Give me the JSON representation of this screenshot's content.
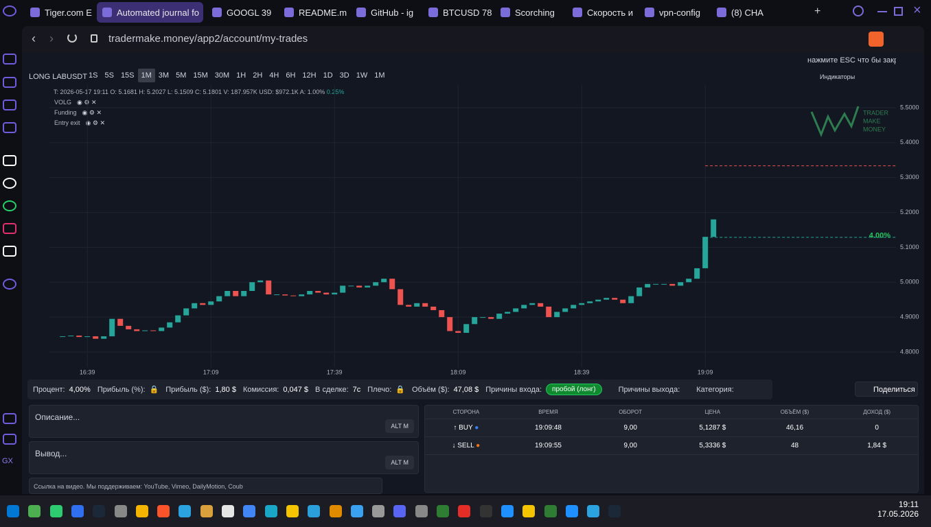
{
  "browser": {
    "tabs": [
      "Tiger.com E",
      "Automated journal fo",
      "GOOGL 39",
      "README.m",
      "GitHub - ig",
      "BTCUSD 78",
      "Scorching",
      "Скорость и",
      "vpn-config",
      "(8) CHA"
    ],
    "active_tab": 1,
    "url": "tradermake.money/app2/account/my-trades",
    "sidebar_label": "GX"
  },
  "toolbar": {
    "symbol": "LONG LABUSDT",
    "intervals": [
      "1S",
      "5S",
      "15S",
      "1M",
      "3M",
      "5M",
      "15M",
      "30M",
      "1H",
      "2H",
      "4H",
      "6H",
      "12H",
      "1D",
      "3D",
      "1W",
      "1M"
    ],
    "active_interval": 3,
    "close_hint": "нажмите ESC что бы закрыть",
    "indicators_button": "Индикаторы"
  },
  "legend": {
    "ohlc": "T: 2026-05-17 19:11 O: 5.1681 H: 5.2027 L: 5.1509 C: 5.1801 V: 187.957K USD: $972.1K A: 1.00%",
    "change": "0.25%",
    "indicators": [
      "VOLG",
      "Funding",
      "Entry exit"
    ]
  },
  "watermark": [
    "TRADER",
    "MAKE",
    "MONEY"
  ],
  "chart_data": {
    "type": "candlestick",
    "x": [
      -6,
      -4,
      -2,
      0,
      2,
      4,
      6,
      8,
      10,
      12,
      14,
      16,
      18,
      20,
      22,
      24,
      26,
      28,
      30,
      32,
      34,
      36,
      38,
      40,
      42,
      44,
      46,
      48,
      50,
      52,
      54,
      56,
      58,
      60,
      62,
      64,
      66,
      68,
      70,
      72,
      74,
      76,
      78,
      80,
      82,
      84,
      86,
      88,
      90,
      92,
      94,
      96,
      98,
      100,
      102,
      104,
      106,
      108,
      110,
      112,
      114,
      116,
      118,
      120,
      122,
      124,
      126,
      128,
      130,
      132,
      134,
      136,
      138,
      140,
      142,
      144,
      146,
      148,
      150,
      152
    ],
    "values": [
      4.845,
      4.847,
      4.843,
      4.845,
      4.838,
      4.845,
      4.895,
      4.875,
      4.865,
      4.86,
      4.862,
      4.86,
      4.87,
      4.885,
      4.905,
      4.925,
      4.94,
      4.935,
      4.945,
      4.96,
      4.975,
      4.96,
      4.975,
      5.0,
      5.005,
      4.965,
      4.965,
      4.962,
      4.96,
      4.965,
      4.975,
      4.97,
      4.965,
      4.97,
      4.99,
      4.99,
      4.985,
      4.99,
      5.0,
      5.01,
      4.98,
      4.935,
      4.93,
      4.94,
      4.93,
      4.92,
      4.9,
      4.86,
      4.855,
      4.88,
      4.9,
      4.9,
      4.895,
      4.91,
      4.915,
      4.925,
      4.935,
      4.94,
      4.93,
      4.9,
      4.915,
      4.925,
      4.935,
      4.94,
      4.945,
      4.95,
      4.955,
      4.95,
      4.94,
      4.96,
      4.985,
      4.995,
      4.995,
      4.995,
      4.99,
      5.0,
      5.01,
      5.04,
      5.13,
      5.18
    ],
    "up_color": "#26a69a",
    "down_color": "#ef5350",
    "xlim": [
      -9.2,
      196.3
    ],
    "ylim": [
      4.7567,
      5.5649
    ],
    "xticks": [
      {
        "value": 0,
        "label": "16:39"
      },
      {
        "value": 30,
        "label": "17:09"
      },
      {
        "value": 60,
        "label": "17:39"
      },
      {
        "value": 90,
        "label": "18:09"
      },
      {
        "value": 120,
        "label": "18:39"
      },
      {
        "value": 150,
        "label": "19:09"
      }
    ],
    "yticks": [
      {
        "value": 5.5,
        "label": "5.5000"
      },
      {
        "value": 5.4,
        "label": "5.4000"
      },
      {
        "value": 5.3,
        "label": "5.3000"
      },
      {
        "value": 5.2,
        "label": "5.2000"
      },
      {
        "value": 5.1,
        "label": "5.1000"
      },
      {
        "value": 5.0,
        "label": "5.0000"
      },
      {
        "value": 4.9,
        "label": "4.9000"
      },
      {
        "value": 4.8,
        "label": "4.8000"
      }
    ],
    "grid": true,
    "entry_line": 5.1287,
    "exit_line": 5.3336,
    "profit_label": "4.00%"
  },
  "stats": {
    "items": [
      {
        "label": "Процент:",
        "value": "4,00%"
      },
      {
        "label": "Прибыль (%):",
        "value": ""
      },
      {
        "label": "Прибыль ($):",
        "value": "1,80 $"
      },
      {
        "label": "Комиссия:",
        "value": "0,047 $"
      },
      {
        "label": "В сделке:",
        "value": "7с"
      },
      {
        "label": "Плечо:",
        "value": ""
      },
      {
        "label": "Объём ($):",
        "value": "47,08 $"
      }
    ],
    "entry_reasons_label": "Причины входа:",
    "entry_reason": "пробой (лонг)",
    "exit_reasons_label": "Причины выхода:",
    "category_label": "Категория:",
    "share": "Поделиться"
  },
  "notes": {
    "description": "Описание...",
    "conclusion": "Вывод...",
    "voice": "ALT M",
    "video_placeholder": "Ссылка на видео. Мы поддерживаем: YouTube, Vimeo, DailyMotion, Coub"
  },
  "table": {
    "headers": [
      "СТОРОНА",
      "ВРЕМЯ",
      "ОБОРОТ",
      "ЦЕНА",
      "ОБЪЁМ ($)",
      "ДОХОД ($)"
    ],
    "rows": [
      [
        "BUY",
        "19:09:48",
        "9,00",
        "5,1287 $",
        "46,16",
        "0"
      ],
      [
        "SELL",
        "19:09:55",
        "9,00",
        "5,3336 $",
        "48",
        "1,84 $"
      ]
    ]
  },
  "taskbar": {
    "time": "19:11",
    "date": "17.05.2026"
  }
}
